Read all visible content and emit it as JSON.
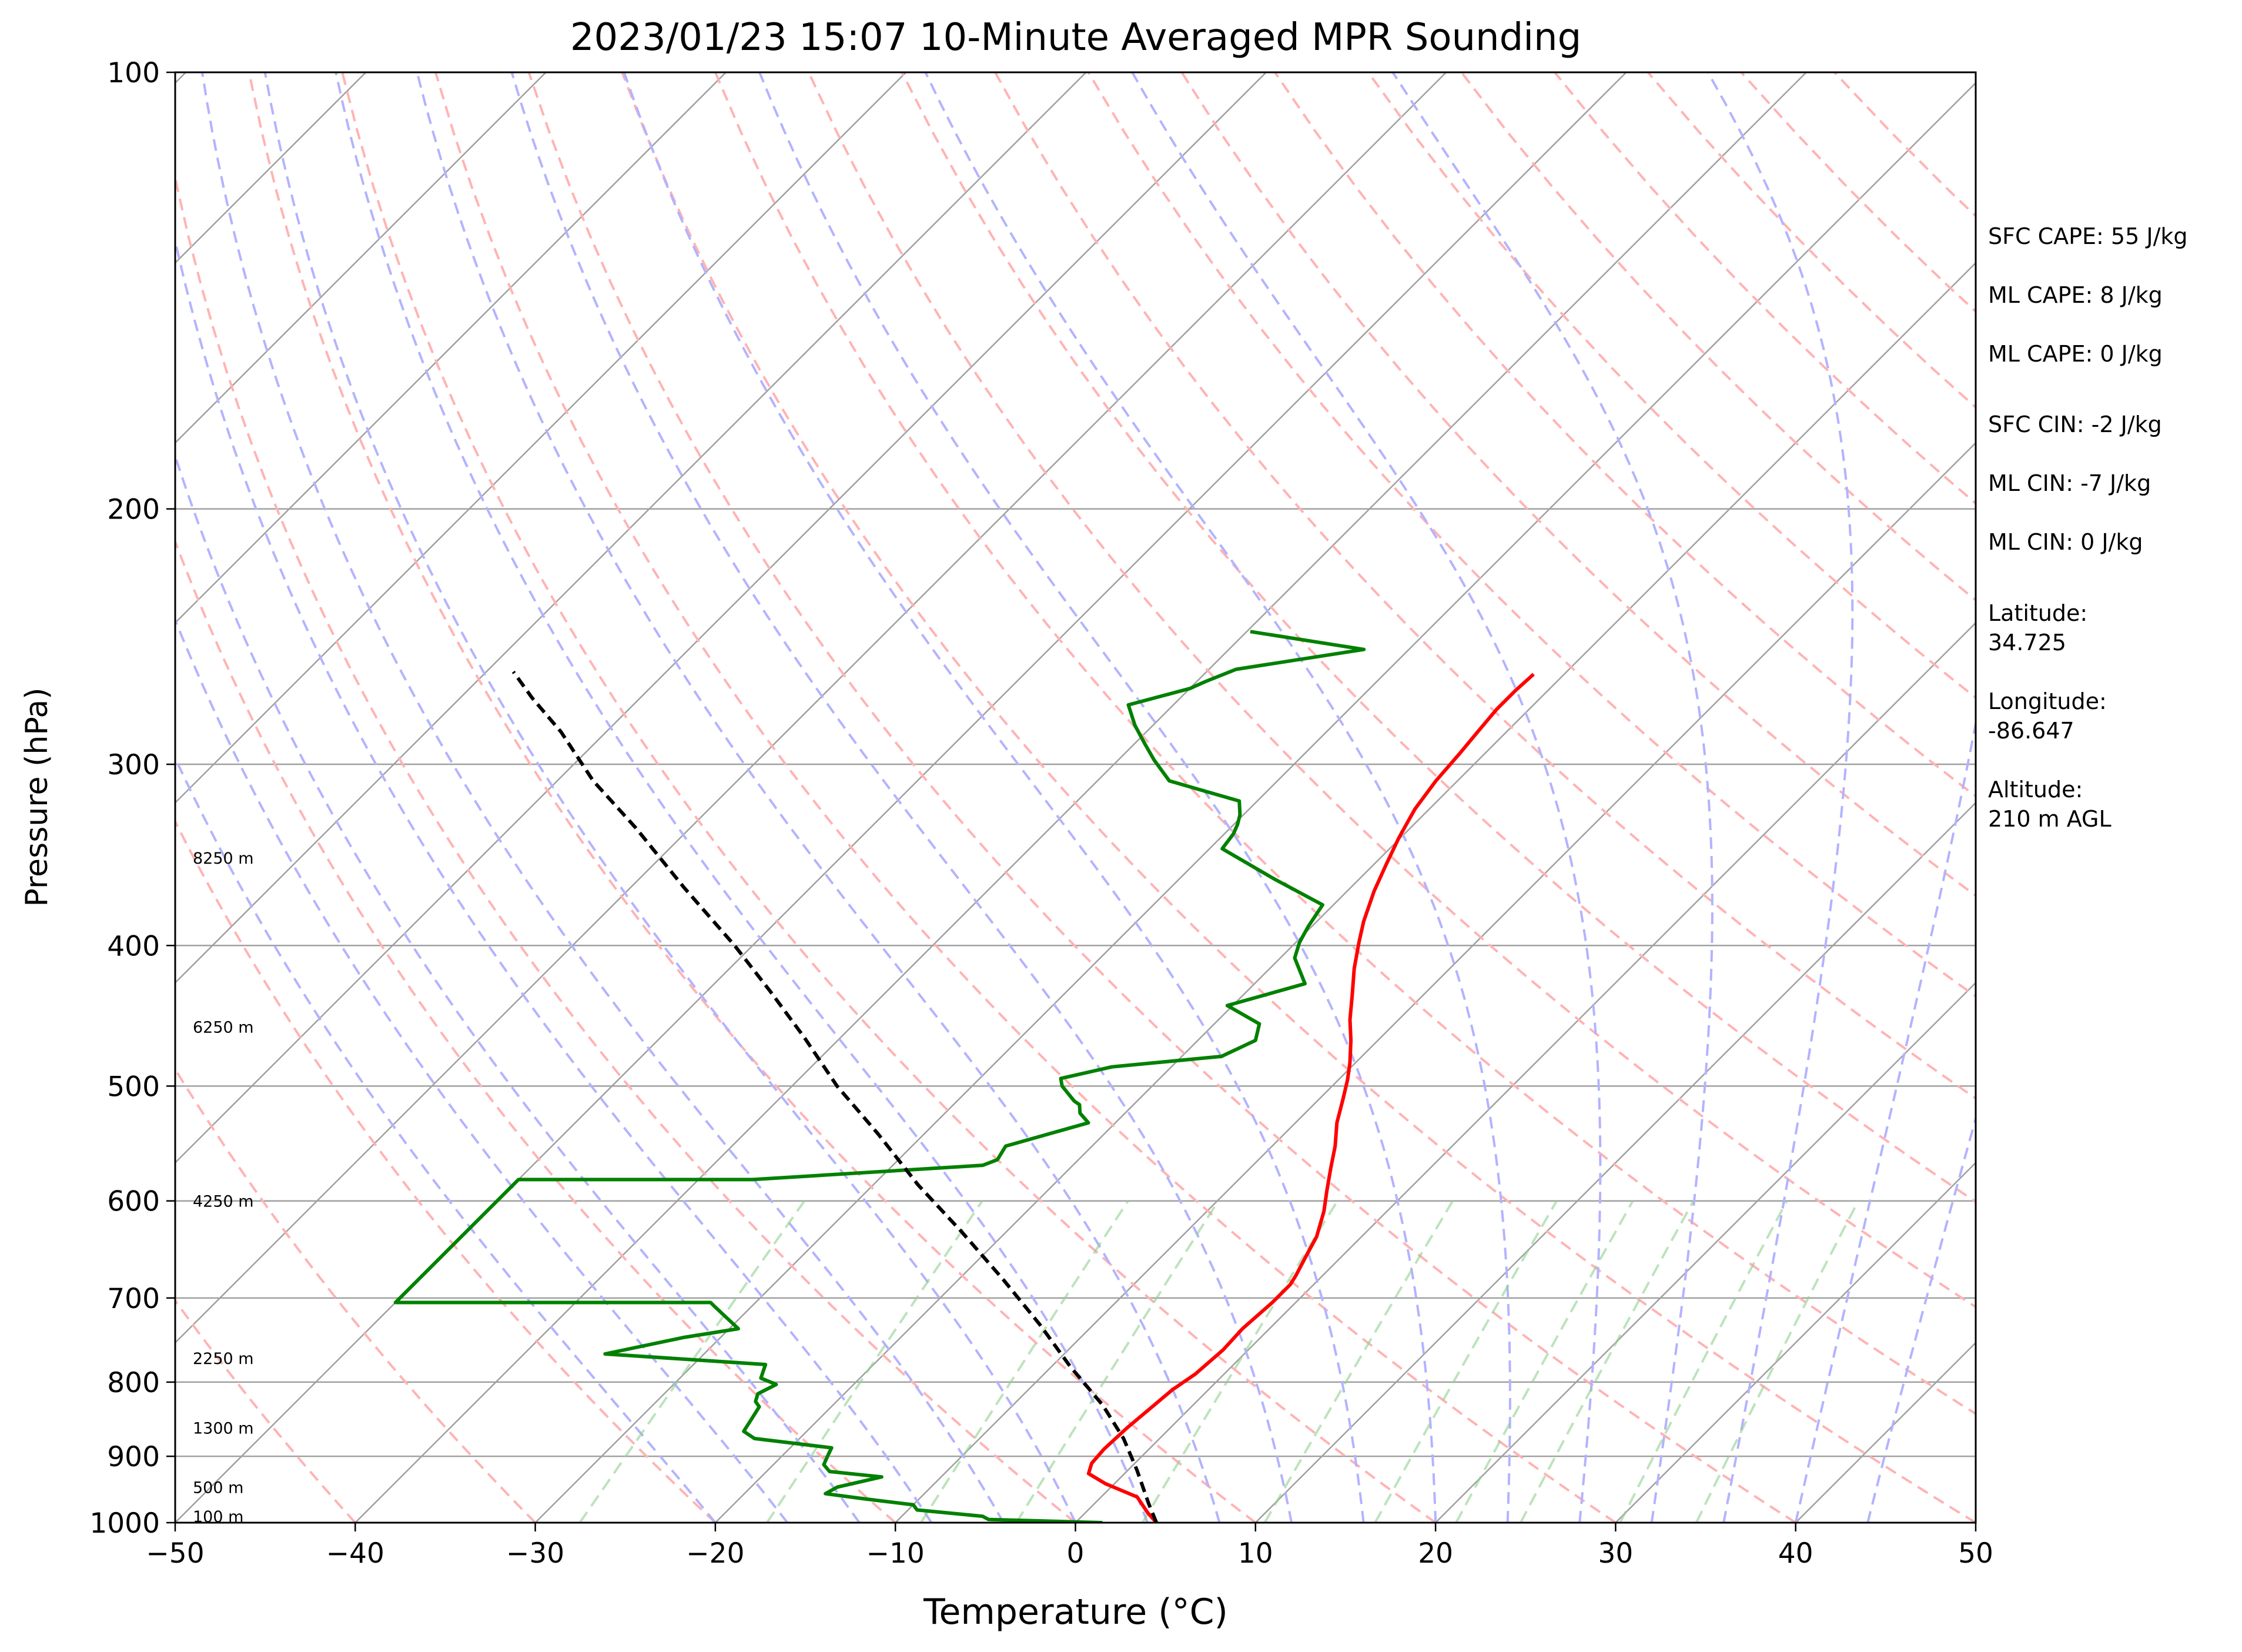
{
  "chart_data": {
    "type": "line",
    "subtype": "skew-T log-P sounding",
    "title": "2023/01/23 15:07 10-Minute Averaged MPR Sounding",
    "xlabel": "Temperature (°C)",
    "ylabel": "Pressure (hPa)",
    "xlim": [
      -50,
      50
    ],
    "ylim": [
      1000,
      100
    ],
    "y_scale": "log",
    "x_ticks": [
      "−50",
      "−40",
      "−30",
      "−20",
      "−10",
      "0",
      "10",
      "20",
      "30",
      "40",
      "50"
    ],
    "x_tick_values": [
      -50,
      -40,
      -30,
      -20,
      -10,
      0,
      10,
      20,
      30,
      40,
      50
    ],
    "y_ticks": [
      "1000",
      "900",
      "800",
      "700",
      "600",
      "500",
      "400",
      "300",
      "200",
      "100"
    ],
    "y_tick_values": [
      1000,
      900,
      800,
      700,
      600,
      500,
      400,
      300,
      200,
      100
    ],
    "horizontal_grid": true,
    "height_labels": [
      {
        "text": "100 m",
        "p": 990
      },
      {
        "text": "500 m",
        "p": 945
      },
      {
        "text": "1300 m",
        "p": 860
      },
      {
        "text": "2250 m",
        "p": 770
      },
      {
        "text": "4250 m",
        "p": 600
      },
      {
        "text": "6250 m",
        "p": 455
      },
      {
        "text": "8250 m",
        "p": 348
      }
    ],
    "series": [
      {
        "key": "temperature",
        "color": "#ff0000",
        "points": [
          [
            4.5,
            1000
          ],
          [
            3.5,
            985
          ],
          [
            2,
            960
          ],
          [
            -0.5,
            940
          ],
          [
            -2,
            925
          ],
          [
            -2.4,
            910
          ],
          [
            -2.5,
            890
          ],
          [
            -2.4,
            860
          ],
          [
            -2.2,
            835
          ],
          [
            -2,
            810
          ],
          [
            -1.6,
            790
          ],
          [
            -1.4,
            760
          ],
          [
            -1.5,
            735
          ],
          [
            -1.3,
            705
          ],
          [
            -1.3,
            685
          ],
          [
            -1.5,
            675
          ],
          [
            -2,
            655
          ],
          [
            -2.5,
            635
          ],
          [
            -3.5,
            610
          ],
          [
            -4.5,
            590
          ],
          [
            -5.5,
            570
          ],
          [
            -6.5,
            550
          ],
          [
            -7.7,
            530
          ],
          [
            -8.7,
            510
          ],
          [
            -9.5,
            495
          ],
          [
            -10.3,
            482
          ],
          [
            -11.5,
            465
          ],
          [
            -12.7,
            450
          ],
          [
            -14,
            432
          ],
          [
            -15.3,
            415
          ],
          [
            -16.5,
            398
          ],
          [
            -17.4,
            385
          ],
          [
            -18.5,
            367
          ],
          [
            -19.3,
            352
          ],
          [
            -20.1,
            337
          ],
          [
            -20.8,
            322
          ],
          [
            -21.2,
            308
          ],
          [
            -21.4,
            295
          ],
          [
            -21.6,
            285
          ],
          [
            -21.8,
            275
          ],
          [
            -21.8,
            267
          ],
          [
            -21.7,
            260
          ]
        ]
      },
      {
        "key": "dewpoint",
        "color": "#008000",
        "points": [
          [
            1.5,
            1000
          ],
          [
            -5,
            995
          ],
          [
            -5.5,
            990
          ],
          [
            -9.5,
            980
          ],
          [
            -10,
            972
          ],
          [
            -13,
            963
          ],
          [
            -15.5,
            955
          ],
          [
            -15.2,
            945
          ],
          [
            -13.3,
            930
          ],
          [
            -16.5,
            922
          ],
          [
            -17.2,
            912
          ],
          [
            -17.5,
            898
          ],
          [
            -17.7,
            888
          ],
          [
            -22.5,
            875
          ],
          [
            -23.5,
            865
          ],
          [
            -23.8,
            845
          ],
          [
            -24,
            832
          ],
          [
            -24.5,
            825
          ],
          [
            -24.8,
            815
          ],
          [
            -24.3,
            803
          ],
          [
            -25.5,
            795
          ],
          [
            -26,
            778
          ],
          [
            -35.5,
            765
          ],
          [
            -32,
            745
          ],
          [
            -29.5,
            735
          ],
          [
            -32,
            710
          ],
          [
            -32.5,
            705
          ],
          [
            -50,
            705
          ],
          [
            -50,
            580
          ],
          [
            -37,
            580
          ],
          [
            -25,
            567
          ],
          [
            -24.5,
            562
          ],
          [
            -24.8,
            550
          ],
          [
            -21.5,
            530
          ],
          [
            -22.5,
            522
          ],
          [
            -23,
            515
          ],
          [
            -23.5,
            512
          ],
          [
            -25,
            500
          ],
          [
            -25.5,
            494
          ],
          [
            -23.3,
            485
          ],
          [
            -17.8,
            477
          ],
          [
            -16.8,
            465
          ],
          [
            -17.5,
            453
          ],
          [
            -20.3,
            440
          ],
          [
            -17.2,
            425
          ],
          [
            -19.2,
            408
          ],
          [
            -19.8,
            398
          ],
          [
            -20.2,
            388
          ],
          [
            -20.6,
            375
          ],
          [
            -24.7,
            360
          ],
          [
            -29.3,
            343
          ],
          [
            -29.5,
            335
          ],
          [
            -29.8,
            330
          ],
          [
            -30.2,
            325
          ],
          [
            -31,
            318
          ],
          [
            -36,
            308
          ],
          [
            -38,
            298
          ],
          [
            -39.5,
            290
          ],
          [
            -41,
            282
          ],
          [
            -42.5,
            273
          ],
          [
            -40,
            266
          ],
          [
            -39.5,
            263
          ],
          [
            -38.5,
            258
          ],
          [
            -32.5,
            250
          ],
          [
            -39.8,
            243
          ]
        ]
      },
      {
        "key": "parcel",
        "color": "#000000",
        "dashed": true,
        "points": [
          [
            4.5,
            1000
          ],
          [
            3,
            970
          ],
          [
            0.5,
            920
          ],
          [
            -2,
            875
          ],
          [
            -5,
            830
          ],
          [
            -9,
            780
          ],
          [
            -13,
            730
          ],
          [
            -17.5,
            680
          ],
          [
            -22.5,
            630
          ],
          [
            -27.5,
            585
          ],
          [
            -32.5,
            540
          ],
          [
            -37.5,
            500
          ],
          [
            -42,
            463
          ],
          [
            -46.5,
            430
          ],
          [
            -51,
            400
          ],
          [
            -57,
            365
          ],
          [
            -63,
            332
          ],
          [
            -68,
            308
          ],
          [
            -72.5,
            285
          ],
          [
            -76,
            270
          ],
          [
            -78.5,
            259
          ]
        ]
      }
    ],
    "background_lines": {
      "isotherm_color": "#a0a0a0",
      "dry_adiabat_color": "#ffb3b3",
      "moist_adiabat_color": "#b3b3ff",
      "mixing_ratio_color": "#8fd08f"
    },
    "stats": [
      "SFC CAPE: 55 J/kg",
      "ML CAPE: 8 J/kg",
      "ML CAPE: 0 J/kg",
      "SFC CIN: -2 J/kg",
      "ML CIN: -7 J/kg",
      "ML CIN: 0 J/kg",
      "Latitude:",
      "34.725",
      "Longitude:",
      "-86.647",
      "Altitude:",
      "210 m AGL"
    ]
  }
}
